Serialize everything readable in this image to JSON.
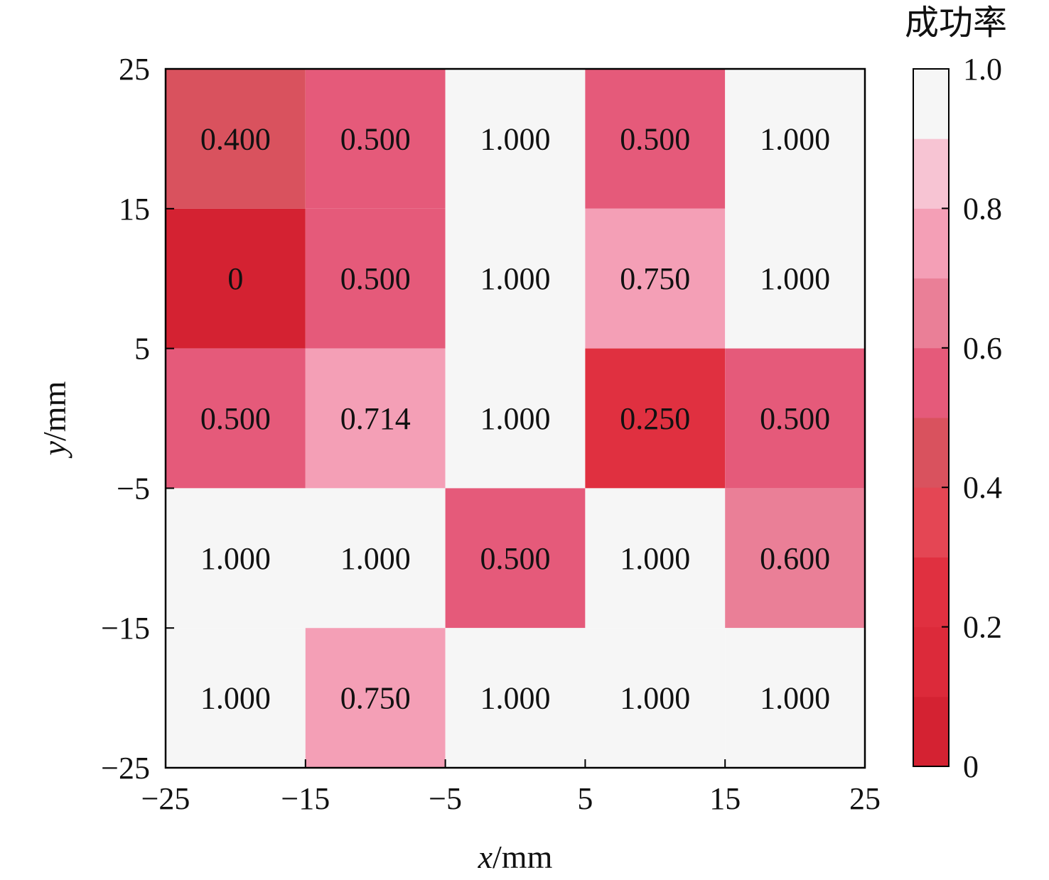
{
  "chart_data": {
    "type": "heatmap",
    "xlabel_var": "x",
    "xlabel_unit": "/mm",
    "ylabel_var": "y",
    "ylabel_unit": "/mm",
    "x_ticks": [
      "−25",
      "−15",
      "−5",
      "5",
      "15",
      "25"
    ],
    "y_ticks": [
      "25",
      "15",
      "5",
      "−5",
      "−15",
      "−25"
    ],
    "xlim": [
      -25,
      25
    ],
    "ylim": [
      -25,
      25
    ],
    "x_centers": [
      -20,
      -10,
      0,
      10,
      20
    ],
    "y_centers": [
      20,
      10,
      0,
      -10,
      -20
    ],
    "values": [
      [
        0.4,
        0.5,
        1.0,
        0.5,
        1.0
      ],
      [
        0.0,
        0.5,
        1.0,
        0.75,
        1.0
      ],
      [
        0.5,
        0.714,
        1.0,
        0.25,
        0.5
      ],
      [
        1.0,
        1.0,
        0.5,
        1.0,
        0.6
      ],
      [
        1.0,
        0.75,
        1.0,
        1.0,
        1.0
      ]
    ],
    "labels": [
      [
        "0.400",
        "0.500",
        "1.000",
        "0.500",
        "1.000"
      ],
      [
        "0",
        "0.500",
        "1.000",
        "0.750",
        "1.000"
      ],
      [
        "0.500",
        "0.714",
        "1.000",
        "0.250",
        "0.500"
      ],
      [
        "1.000",
        "1.000",
        "0.500",
        "1.000",
        "0.600"
      ],
      [
        "1.000",
        "0.750",
        "1.000",
        "1.000",
        "1.000"
      ]
    ],
    "colorbar": {
      "title": "成功率",
      "ticks": [
        "0",
        "0.2",
        "0.4",
        "0.6",
        "0.8",
        "1.0"
      ],
      "range": [
        0,
        1
      ],
      "colors": [
        {
          "from": 0.0,
          "to": 0.1,
          "color": "#d42232"
        },
        {
          "from": 0.1,
          "to": 0.2,
          "color": "#dc2a3a"
        },
        {
          "from": 0.2,
          "to": 0.3,
          "color": "#e03040"
        },
        {
          "from": 0.3,
          "to": 0.4,
          "color": "#e44654"
        },
        {
          "from": 0.4,
          "to": 0.5,
          "color": "#d9525e"
        },
        {
          "from": 0.5,
          "to": 0.6,
          "color": "#e55a7a"
        },
        {
          "from": 0.6,
          "to": 0.7,
          "color": "#ea7f97"
        },
        {
          "from": 0.7,
          "to": 0.8,
          "color": "#f49fb6"
        },
        {
          "from": 0.8,
          "to": 0.9,
          "color": "#f7c4d3"
        },
        {
          "from": 0.9,
          "to": 1.0,
          "color": "#f6f6f6"
        }
      ]
    },
    "grid": false
  }
}
